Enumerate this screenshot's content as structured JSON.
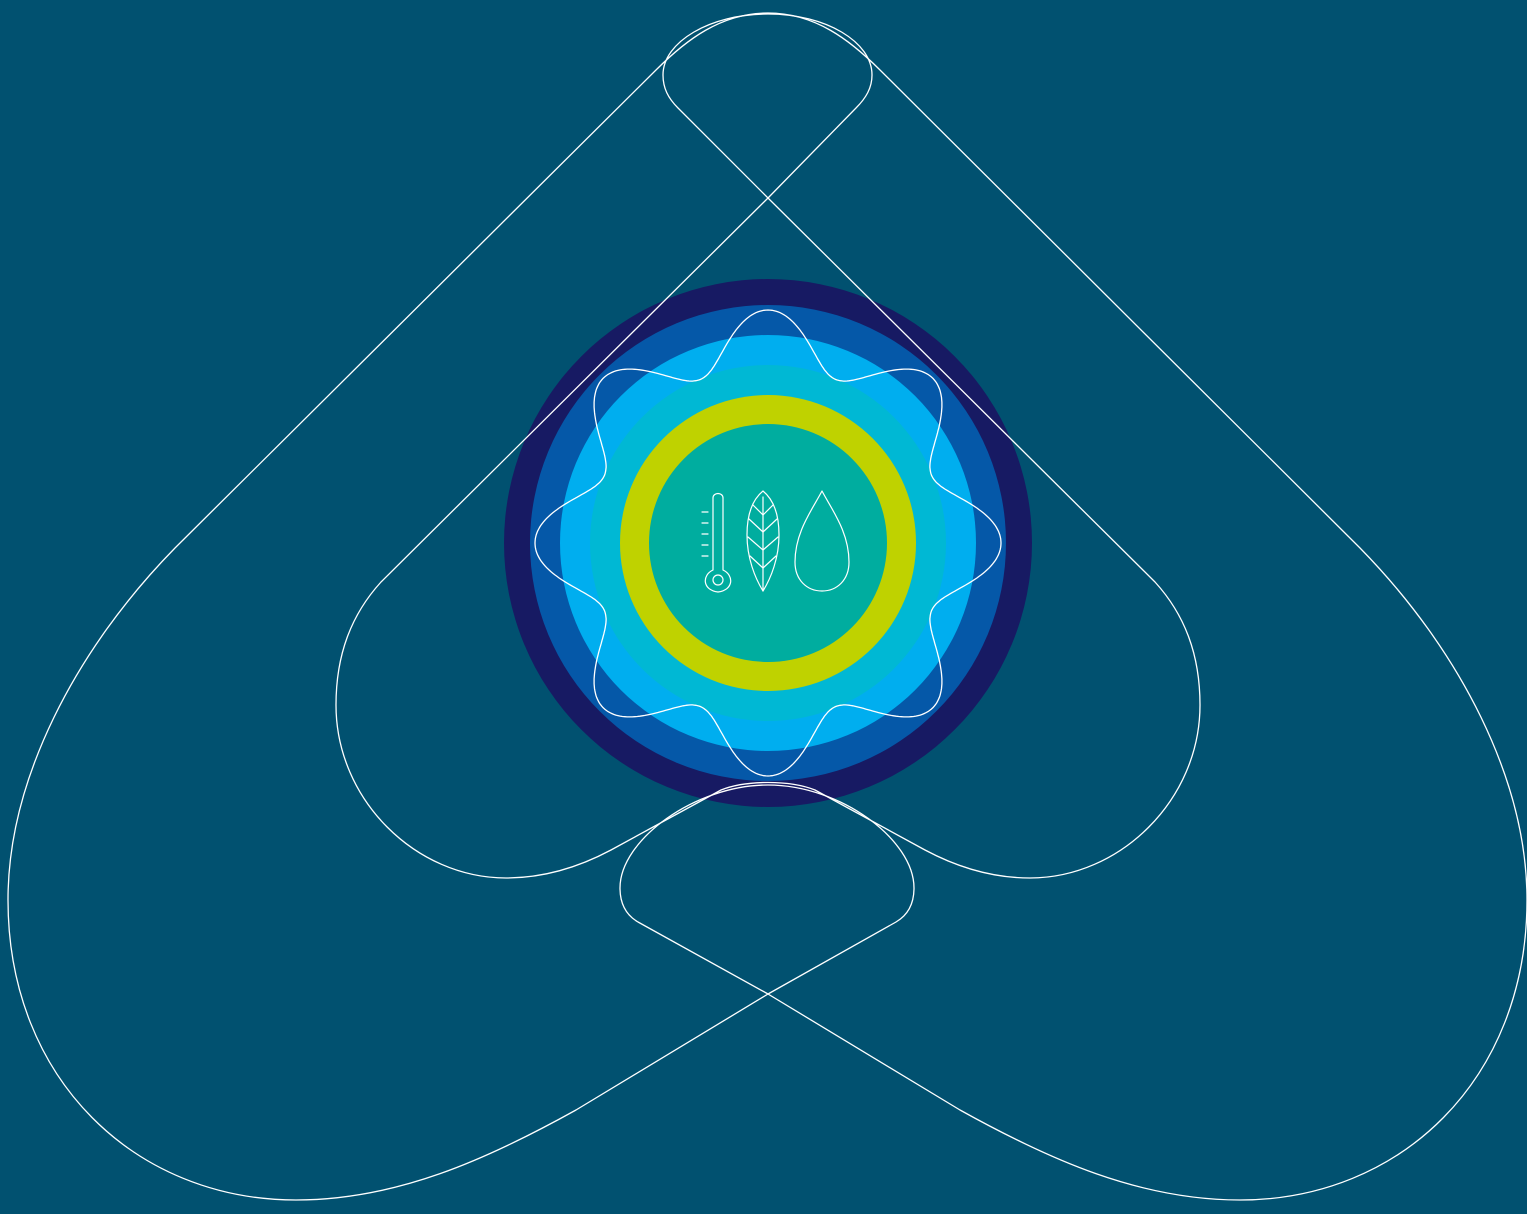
{
  "colors": {
    "background": "#015170",
    "ring_navy": "#171a63",
    "ring_blue": "#0558a8",
    "ring_sky": "#00aeef",
    "ring_cyan": "#00b8d4",
    "ring_lime": "#bfd200",
    "core_teal": "#00ad9f",
    "line": "#ffffff"
  },
  "icons": [
    "thermometer-icon",
    "leaf-icon",
    "water-drop-icon"
  ]
}
